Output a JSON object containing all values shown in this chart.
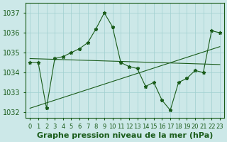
{
  "hours": [
    0,
    1,
    2,
    3,
    4,
    5,
    6,
    7,
    8,
    9,
    10,
    11,
    12,
    13,
    14,
    15,
    16,
    17,
    18,
    19,
    20,
    21,
    22,
    23
  ],
  "pressure": [
    1034.5,
    1034.5,
    1032.2,
    1034.7,
    1034.8,
    1035.0,
    1035.2,
    1035.5,
    1036.2,
    1037.0,
    1036.3,
    1034.5,
    1034.3,
    1034.2,
    1033.3,
    1033.5,
    1032.6,
    1032.1,
    1033.5,
    1033.7,
    1034.1,
    1034.0,
    1036.1,
    1036.0
  ],
  "trend1_x": [
    0,
    23
  ],
  "trend1_y": [
    1034.7,
    1034.4
  ],
  "trend2_x": [
    0,
    23
  ],
  "trend2_y": [
    1032.2,
    1035.3
  ],
  "bg_color": "#cce8e8",
  "grid_color": "#9fcfcf",
  "line_color": "#1a5c1a",
  "marker_color": "#1a5c1a",
  "ylim": [
    1031.7,
    1037.5
  ],
  "yticks": [
    1032,
    1033,
    1034,
    1035,
    1036,
    1037
  ],
  "xticks": [
    0,
    1,
    2,
    3,
    4,
    5,
    6,
    7,
    8,
    9,
    10,
    11,
    12,
    13,
    14,
    15,
    16,
    17,
    18,
    19,
    20,
    21,
    22,
    23
  ],
  "title": "Graphe pression niveau de la mer (hPa)",
  "title_fontsize": 8,
  "tick_fontsize": 6
}
